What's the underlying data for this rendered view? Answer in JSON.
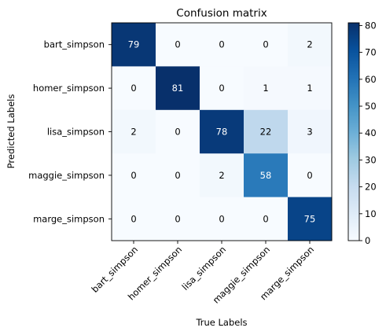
{
  "chart_data": {
    "type": "heatmap",
    "title": "Confusion matrix",
    "xlabel": "True Labels",
    "ylabel": "Predicted Labels",
    "x_categories": [
      "bart_simpson",
      "homer_simpson",
      "lisa_simpson",
      "maggie_simpson",
      "marge_simpson"
    ],
    "y_categories": [
      "bart_simpson",
      "homer_simpson",
      "lisa_simpson",
      "maggie_simpson",
      "marge_simpson"
    ],
    "matrix": [
      [
        79,
        0,
        0,
        0,
        2
      ],
      [
        0,
        81,
        0,
        1,
        1
      ],
      [
        2,
        0,
        78,
        22,
        3
      ],
      [
        0,
        0,
        2,
        58,
        0
      ],
      [
        0,
        0,
        0,
        0,
        75
      ]
    ],
    "colormap": "Blues",
    "colorbar": {
      "range": [
        0,
        81
      ],
      "ticks": [
        0,
        10,
        20,
        30,
        40,
        50,
        60,
        70,
        80
      ]
    },
    "grid": false
  }
}
